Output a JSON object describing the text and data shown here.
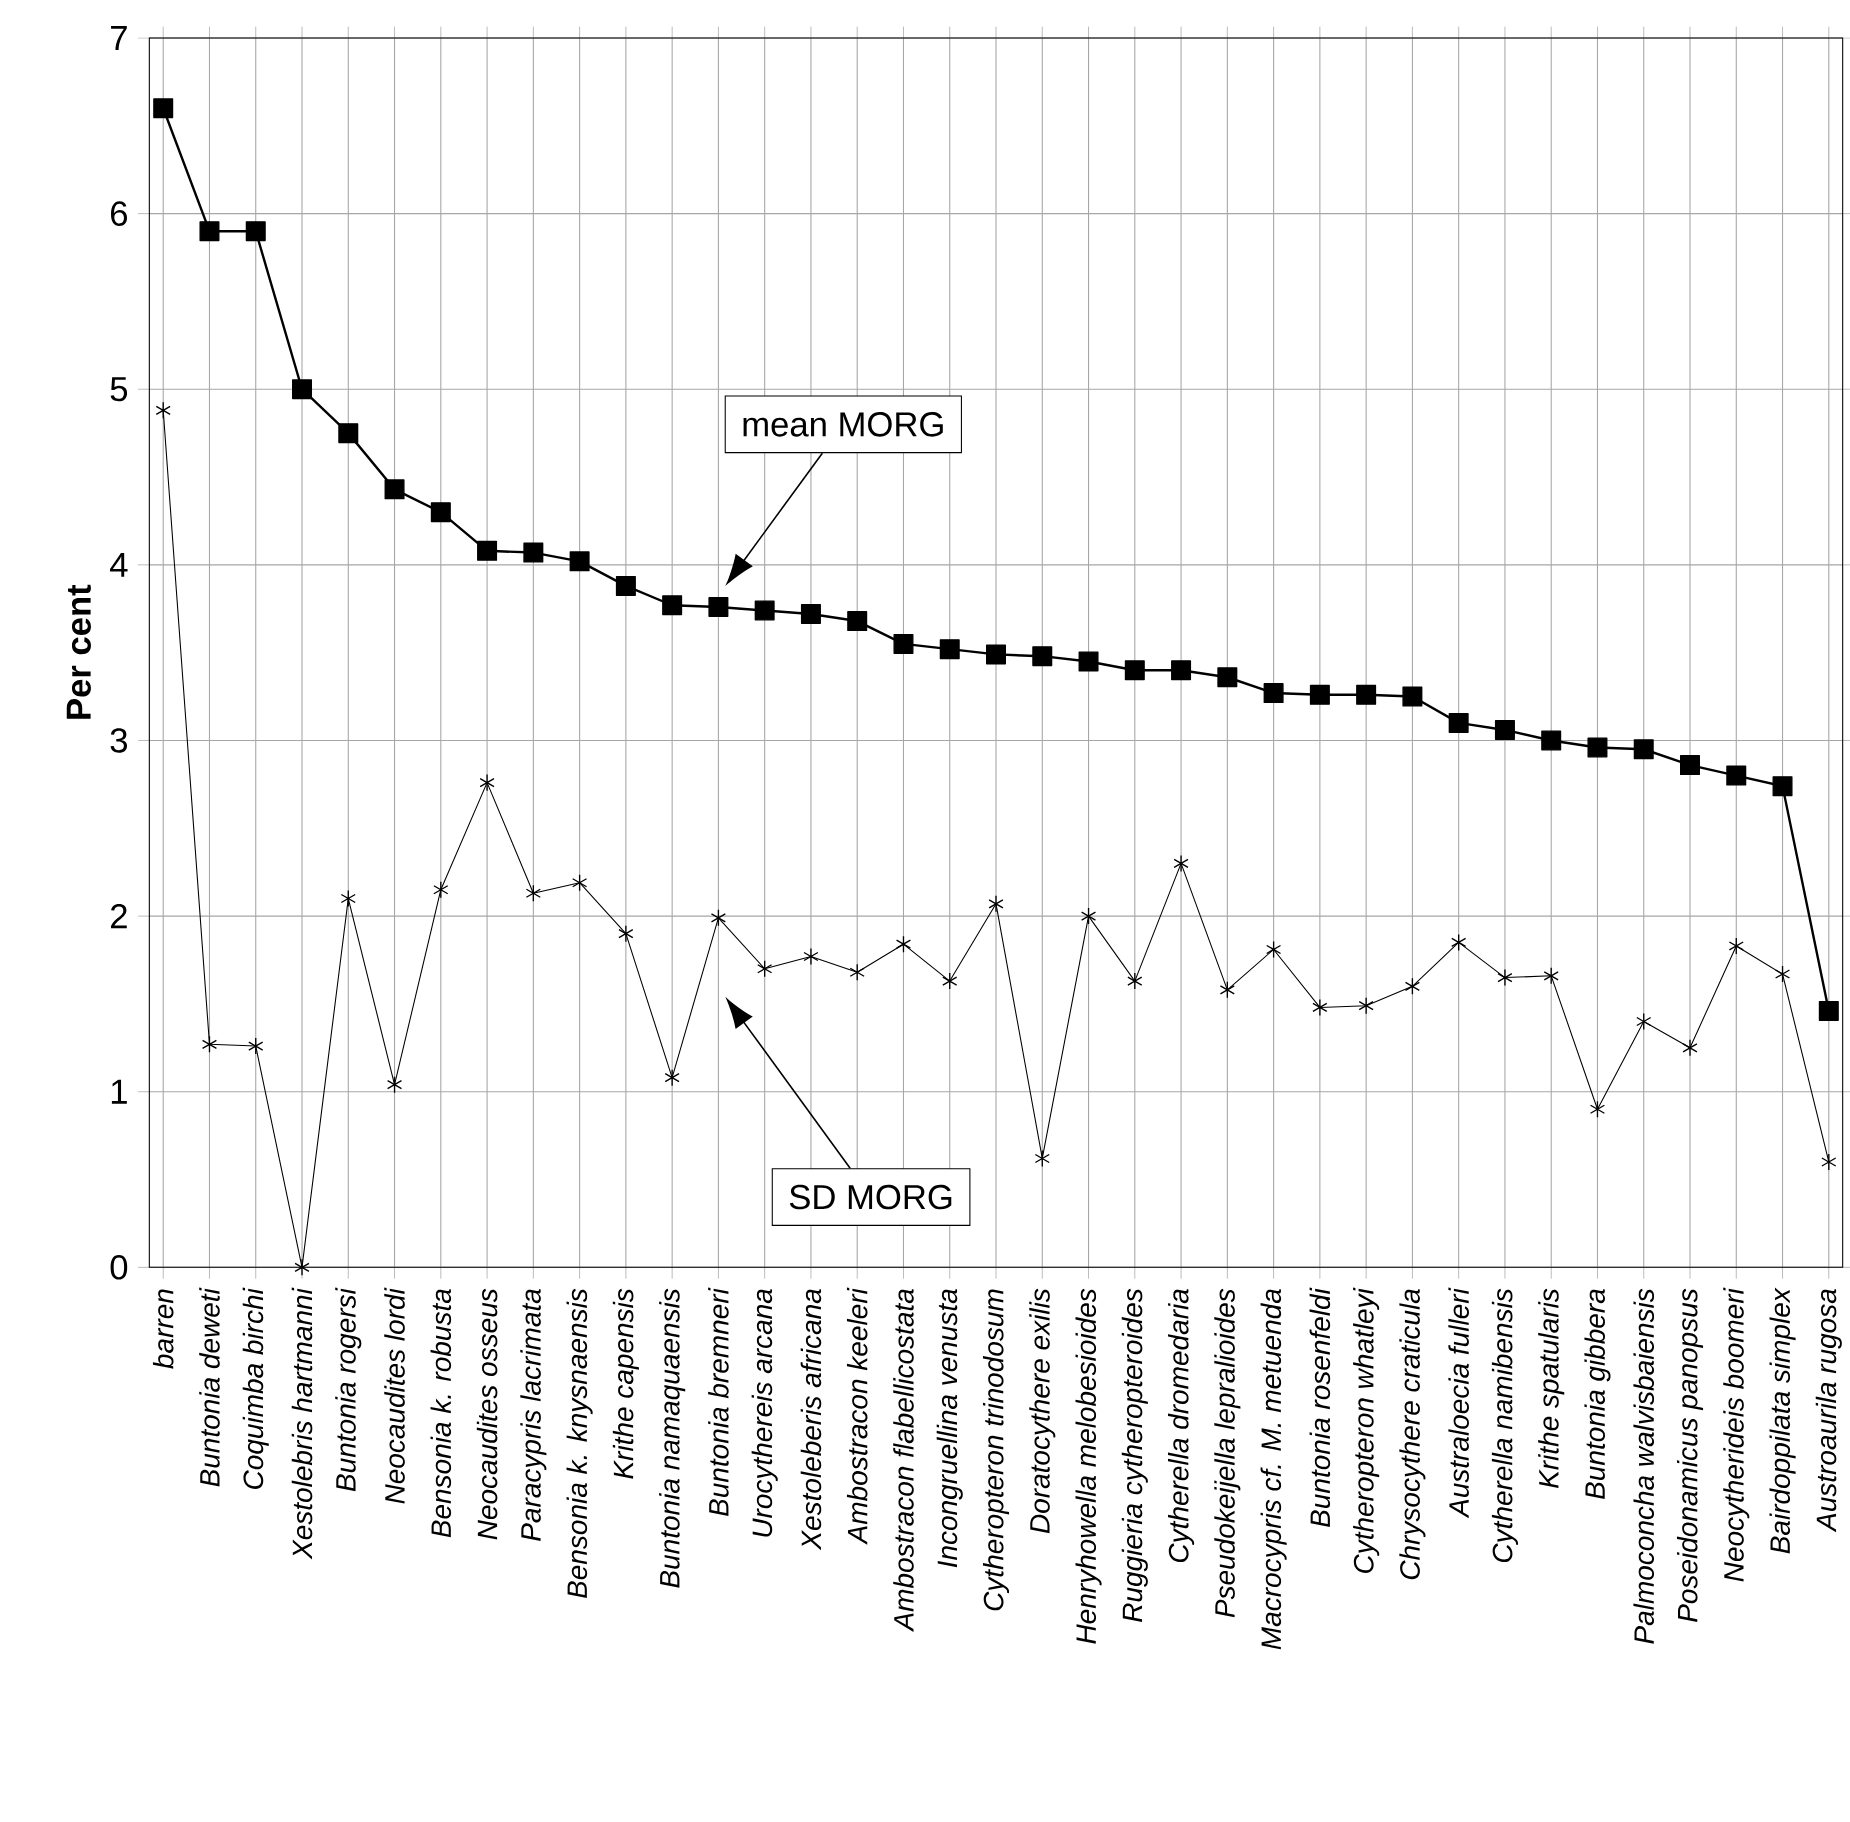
{
  "chart_data": {
    "type": "line",
    "ylabel": "Per cent",
    "categories": [
      "barren",
      "Buntonia deweti",
      "Coquimba birchi",
      "Xestolebris hartmanni",
      "Buntonia rogersi",
      "Neocaudites lordi",
      "Bensonia k. robusta",
      "Neocaudites osseus",
      "Paracypris lacrimata",
      "Bensonia k. knysnaensis",
      "Krithe capensis",
      "Buntonia namaquaensis",
      "Buntonia bremneri",
      "Urocythereis arcana",
      "Xestoleberis africana",
      "Ambostracon keeleri",
      "Ambostracon flabellicostata",
      "Incongruellina venusta",
      "Cytheropteron trinodosum",
      "Doratocythere exilis",
      "Henryhowella melobesioides",
      "Ruggieria cytheropteroides",
      "Cytherella dromedaria",
      "Pseudokeijella lepralioides",
      "Macrocypris cf. M. metuenda",
      "Buntonia rosenfeldi",
      "Cytheropteron whatleyi",
      "Chrysocythere craticula",
      "Australoecia fulleri",
      "Cytherella namibensis",
      "Krithe spatularis",
      "Buntonia gibbera",
      "Palmoconcha walvisbaiensis",
      "Poseidonamicus panopsus",
      "Neocytherideis boomeri",
      "Bairdoppilata simplex",
      "Austroaurila rugosa"
    ],
    "series": [
      {
        "color": "#000000",
        "marker": "square",
        "values": [
          6.6,
          5.9,
          5.9,
          5.0,
          4.75,
          4.43,
          4.3,
          4.08,
          4.07,
          4.02,
          3.88,
          3.77,
          3.76,
          3.74,
          3.72,
          3.68,
          3.55,
          3.52,
          3.49,
          3.48,
          3.45,
          3.4,
          3.4,
          3.36,
          3.27,
          3.26,
          3.26,
          3.25,
          3.1,
          3.06,
          3.0,
          2.96,
          2.95,
          2.86,
          2.8,
          2.74,
          1.46
        ]
      },
      {
        "color": "#000000",
        "marker": "cross",
        "values": [
          4.88,
          1.27,
          1.26,
          0.0,
          2.1,
          1.04,
          2.15,
          2.76,
          2.13,
          2.19,
          1.9,
          1.08,
          1.99,
          1.7,
          1.77,
          1.68,
          1.84,
          1.63,
          2.07,
          0.62,
          2.0,
          1.63,
          2.3,
          1.58,
          1.81,
          1.48,
          1.49,
          1.6,
          1.85,
          1.65,
          1.66,
          0.9,
          1.4,
          1.25,
          1.83,
          1.67,
          0.6
        ]
      }
    ],
    "ylim": [
      0,
      7
    ],
    "yticks": [
      0,
      1,
      2,
      3,
      4,
      5,
      6,
      7
    ],
    "grid": true,
    "annotations": [
      "mean MORG",
      "SD MORG"
    ]
  }
}
